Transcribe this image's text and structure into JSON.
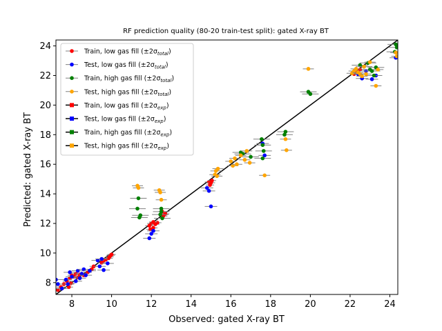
{
  "chart_data": {
    "type": "scatter",
    "title": "RF prediction quality (80-20 train-test split): gated X-ray BT",
    "xlabel": "Observed: gated X-ray BT",
    "ylabel": "Predicted: gated X-ray BT",
    "xlim": [
      7.2,
      24.4
    ],
    "ylim": [
      7.2,
      24.4
    ],
    "xticks": [
      "8",
      "10",
      "12",
      "14",
      "16",
      "18",
      "20",
      "22",
      "24"
    ],
    "yticks": [
      "8",
      "10",
      "12",
      "14",
      "16",
      "18",
      "20",
      "22",
      "24"
    ],
    "legend_position": "top-left",
    "legend": [
      {
        "base": "Train, low gas fill (±2σ",
        "sub": "total",
        "end": ")",
        "color": "#ff0000",
        "marker": "circle"
      },
      {
        "base": "Test, low gas fill (±2σ",
        "sub": "total",
        "end": ")",
        "color": "#0000ff",
        "marker": "circle"
      },
      {
        "base": "Train, high gas fill (±2σ",
        "sub": "total",
        "end": ")",
        "color": "#008000",
        "marker": "circle"
      },
      {
        "base": "Test, high gas fill (±2σ",
        "sub": "total",
        "end": ")",
        "color": "#ffa500",
        "marker": "circle"
      },
      {
        "base": "Train, low gas fill (±2σ",
        "sub": "exp",
        "end": ")",
        "color": "#ff0000",
        "marker": "square"
      },
      {
        "base": "Test, low gas fill (±2σ",
        "sub": "exp",
        "end": ")",
        "color": "#0000ff",
        "marker": "square"
      },
      {
        "base": "Train, high gas fill (±2σ",
        "sub": "exp",
        "end": ")",
        "color": "#008000",
        "marker": "square"
      },
      {
        "base": "Test, high gas fill (±2σ",
        "sub": "exp",
        "end": ")",
        "color": "#ffa500",
        "marker": "square"
      }
    ],
    "reference_line": {
      "x": [
        7.2,
        24.4
      ],
      "y": [
        7.2,
        24.4
      ],
      "color": "#000000"
    },
    "series": [
      {
        "color": "#ff0000",
        "points": [
          [
            7.3,
            7.5
          ],
          [
            7.45,
            7.7
          ],
          [
            7.6,
            7.9
          ],
          [
            7.75,
            8.1
          ],
          [
            7.9,
            8.3
          ],
          [
            8.0,
            8.5
          ],
          [
            8.1,
            8.4
          ],
          [
            8.2,
            8.6
          ],
          [
            8.3,
            8.35
          ],
          [
            8.4,
            8.55
          ],
          [
            7.85,
            7.7
          ],
          [
            7.95,
            7.95
          ],
          [
            8.6,
            8.5
          ],
          [
            8.8,
            8.7
          ],
          [
            9.0,
            8.9
          ],
          [
            9.1,
            9.1
          ],
          [
            9.5,
            9.35
          ],
          [
            9.6,
            9.5
          ],
          [
            9.7,
            9.55
          ],
          [
            9.85,
            9.65
          ],
          [
            9.9,
            9.75
          ],
          [
            9.95,
            9.85
          ],
          [
            10.0,
            9.9
          ],
          [
            11.9,
            11.85
          ],
          [
            12.0,
            12.0
          ],
          [
            12.1,
            11.7
          ],
          [
            12.2,
            11.95
          ],
          [
            12.3,
            12.05
          ],
          [
            11.95,
            11.6
          ],
          [
            12.1,
            12.1
          ],
          [
            12.6,
            12.5
          ],
          [
            12.7,
            12.65
          ],
          [
            12.55,
            12.8
          ],
          [
            14.9,
            14.8
          ],
          [
            14.95,
            14.6
          ],
          [
            15.0,
            14.75
          ],
          [
            15.05,
            14.9
          ],
          [
            22.2,
            22.1
          ],
          [
            22.3,
            22.25
          ],
          [
            22.5,
            22.4
          ]
        ]
      },
      {
        "color": "#0000ff",
        "points": [
          [
            7.2,
            8.2
          ],
          [
            7.3,
            7.9
          ],
          [
            7.5,
            7.6
          ],
          [
            7.7,
            8.2
          ],
          [
            7.8,
            7.9
          ],
          [
            7.9,
            8.7
          ],
          [
            8.0,
            8.4
          ],
          [
            8.2,
            8.1
          ],
          [
            8.3,
            8.8
          ],
          [
            8.4,
            8.3
          ],
          [
            8.5,
            8.6
          ],
          [
            8.6,
            8.9
          ],
          [
            8.7,
            8.5
          ],
          [
            8.9,
            8.8
          ],
          [
            9.3,
            9.5
          ],
          [
            9.4,
            9.1
          ],
          [
            9.5,
            9.6
          ],
          [
            9.6,
            8.85
          ],
          [
            9.8,
            9.3
          ],
          [
            11.9,
            11.0
          ],
          [
            12.0,
            11.3
          ],
          [
            12.1,
            11.5
          ],
          [
            14.8,
            14.4
          ],
          [
            14.9,
            14.2
          ],
          [
            15.0,
            13.15
          ],
          [
            17.6,
            17.4
          ],
          [
            17.7,
            16.6
          ],
          [
            22.4,
            22.1
          ],
          [
            22.6,
            21.8
          ],
          [
            22.8,
            22.3
          ],
          [
            23.1,
            21.75
          ],
          [
            23.3,
            22.0
          ],
          [
            24.3,
            23.2
          ]
        ]
      },
      {
        "color": "#008000",
        "points": [
          [
            11.3,
            13.0
          ],
          [
            11.35,
            13.7
          ],
          [
            11.4,
            12.4
          ],
          [
            11.45,
            12.55
          ],
          [
            12.5,
            12.8
          ],
          [
            12.5,
            13.0
          ],
          [
            12.55,
            12.35
          ],
          [
            12.45,
            12.6
          ],
          [
            16.5,
            16.8
          ],
          [
            16.6,
            16.7
          ],
          [
            17.0,
            16.5
          ],
          [
            17.6,
            16.4
          ],
          [
            17.65,
            16.9
          ],
          [
            17.6,
            17.3
          ],
          [
            17.55,
            17.7
          ],
          [
            18.7,
            18.0
          ],
          [
            18.75,
            18.2
          ],
          [
            19.9,
            20.9
          ],
          [
            20.0,
            20.75
          ],
          [
            22.5,
            22.7
          ],
          [
            22.7,
            22.6
          ],
          [
            22.9,
            22.85
          ],
          [
            23.0,
            22.4
          ],
          [
            23.1,
            22.3
          ],
          [
            23.2,
            22.0
          ],
          [
            23.3,
            22.55
          ],
          [
            24.25,
            23.6
          ],
          [
            24.3,
            24.1
          ],
          [
            24.35,
            23.9
          ]
        ]
      },
      {
        "color": "#ffa500",
        "points": [
          [
            11.3,
            14.55
          ],
          [
            11.35,
            14.4
          ],
          [
            12.4,
            14.25
          ],
          [
            12.45,
            14.1
          ],
          [
            12.5,
            13.6
          ],
          [
            15.2,
            15.3
          ],
          [
            15.25,
            15.55
          ],
          [
            15.3,
            15.2
          ],
          [
            15.35,
            15.7
          ],
          [
            16.0,
            16.2
          ],
          [
            16.1,
            15.9
          ],
          [
            16.2,
            16.4
          ],
          [
            16.3,
            16.0
          ],
          [
            16.5,
            16.6
          ],
          [
            16.7,
            16.3
          ],
          [
            16.8,
            16.9
          ],
          [
            16.95,
            16.1
          ],
          [
            17.7,
            15.25
          ],
          [
            18.75,
            17.7
          ],
          [
            18.8,
            16.95
          ],
          [
            19.9,
            22.45
          ],
          [
            22.1,
            22.15
          ],
          [
            22.2,
            22.3
          ],
          [
            22.3,
            22.45
          ],
          [
            22.4,
            22.2
          ],
          [
            22.5,
            22.1
          ],
          [
            22.6,
            21.95
          ],
          [
            22.7,
            22.6
          ],
          [
            22.8,
            22.1
          ],
          [
            23.0,
            22.9
          ],
          [
            23.3,
            21.3
          ],
          [
            23.4,
            22.4
          ],
          [
            24.3,
            23.55
          ],
          [
            24.35,
            23.3
          ]
        ]
      }
    ]
  }
}
